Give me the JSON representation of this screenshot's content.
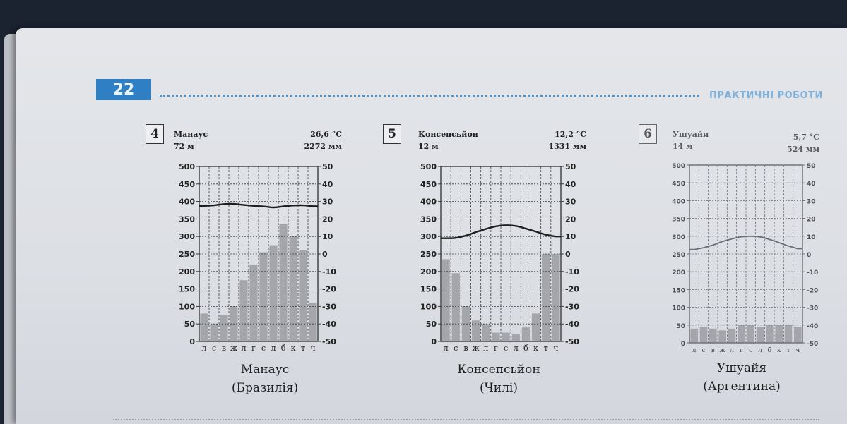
{
  "page": {
    "number": "22",
    "section_title": "ПРАКТИЧНІ РОБОТИ"
  },
  "chart_data": [
    {
      "type": "bar",
      "panel_number": "4",
      "station": "Манаус",
      "elevation": "72 м",
      "mean_temp": "26,6 °С",
      "annual_precip": "2272 мм",
      "caption_city": "Манаус",
      "caption_country": "(Бразилія)",
      "categories": [
        "л",
        "с",
        "в",
        "ж",
        "л",
        "г",
        "с",
        "л",
        "б",
        "к",
        "т",
        "ч"
      ],
      "precip_ylim": [
        0,
        500
      ],
      "temp_ylim": [
        -50,
        50
      ],
      "precip_ticks": [
        "500",
        "450",
        "400",
        "350",
        "300",
        "250",
        "200",
        "150",
        "100",
        "50",
        "0"
      ],
      "temp_ticks": [
        "50",
        "40",
        "30",
        "20",
        "10",
        "0",
        "-10",
        "-20",
        "-30",
        "-40",
        "-50"
      ],
      "series": [
        {
          "kind": "precipitation",
          "values": [
            80,
            50,
            75,
            100,
            175,
            220,
            255,
            275,
            335,
            300,
            260,
            110
          ]
        },
        {
          "kind": "temperature",
          "values": [
            27.5,
            27.8,
            28.5,
            28.6,
            28.0,
            27.5,
            27.2,
            26.6,
            27.2,
            27.7,
            27.8,
            27.3
          ]
        }
      ]
    },
    {
      "type": "bar",
      "panel_number": "5",
      "station": "Консепсьйон",
      "elevation": "12 м",
      "mean_temp": "12,2 °С",
      "annual_precip": "1331 мм",
      "caption_city": "Консепсьйон",
      "caption_country": "(Чилі)",
      "categories": [
        "л",
        "с",
        "в",
        "ж",
        "л",
        "г",
        "с",
        "л",
        "б",
        "к",
        "т",
        "ч"
      ],
      "precip_ylim": [
        0,
        500
      ],
      "temp_ylim": [
        -50,
        50
      ],
      "precip_ticks": [
        "500",
        "450",
        "400",
        "350",
        "300",
        "250",
        "200",
        "150",
        "100",
        "50",
        "0"
      ],
      "temp_ticks": [
        "50",
        "40",
        "30",
        "20",
        "10",
        "0",
        "-10",
        "-20",
        "-30",
        "-40",
        "-50"
      ],
      "series": [
        {
          "kind": "precipitation",
          "values": [
            235,
            195,
            100,
            60,
            50,
            25,
            25,
            20,
            40,
            80,
            250,
            250
          ]
        },
        {
          "kind": "temperature",
          "values": [
            9.0,
            9.2,
            10.5,
            12.5,
            14.3,
            15.8,
            16.4,
            16.0,
            14.5,
            12.8,
            11.0,
            10.0
          ]
        }
      ]
    },
    {
      "type": "bar",
      "panel_number": "6",
      "station": "Ушуайя",
      "elevation": "14 м",
      "mean_temp": "5,7 °С",
      "annual_precip": "524 мм",
      "caption_city": "Ушуайя",
      "caption_country": "(Аргентина)",
      "categories": [
        "л",
        "с",
        "в",
        "ж",
        "л",
        "г",
        "с",
        "л",
        "б",
        "к",
        "т",
        "ч"
      ],
      "precip_ylim": [
        0,
        500
      ],
      "temp_ylim": [
        -50,
        50
      ],
      "precip_ticks": [
        "500",
        "450",
        "400",
        "350",
        "300",
        "250",
        "200",
        "150",
        "100",
        "50",
        "0"
      ],
      "temp_ticks": [
        "50",
        "40",
        "30",
        "20",
        "10",
        "0",
        "-10",
        "-20",
        "-30",
        "-40",
        "-50"
      ],
      "series": [
        {
          "kind": "precipitation",
          "values": [
            40,
            45,
            40,
            35,
            40,
            50,
            50,
            45,
            50,
            50,
            50,
            45
          ]
        },
        {
          "kind": "temperature",
          "values": [
            2.5,
            3.5,
            5.0,
            7.0,
            8.5,
            9.7,
            10.0,
            9.6,
            8.2,
            6.4,
            4.5,
            3.0
          ]
        }
      ]
    }
  ],
  "colors": {
    "bar": "#a4a6ab",
    "grid": "#3c3c3c",
    "line": "#1e1e1e",
    "accent_blue": "#2f7fc4"
  }
}
